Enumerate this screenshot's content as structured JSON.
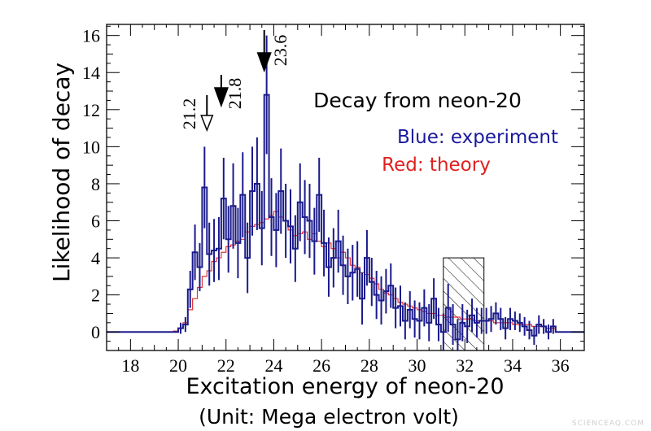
{
  "chart_data": {
    "type": "line",
    "xlabel": "Excitation energy of neon-20",
    "xlabel_unit": "(Unit: Mega electron volt)",
    "ylabel": "Likelihood of decay",
    "xlim": [
      17,
      37
    ],
    "ylim": [
      -1,
      16.6
    ],
    "x_ticks": [
      18,
      20,
      22,
      24,
      26,
      28,
      30,
      32,
      34,
      36
    ],
    "y_ticks": [
      0,
      2,
      4,
      6,
      8,
      10,
      12,
      14,
      16
    ],
    "annotations": {
      "title": "Decay from neon-20",
      "blue_legend": "Blue: experiment",
      "red_legend": "Red: theory"
    },
    "markers": [
      {
        "label": "21.2",
        "x": 21.2,
        "style": "open"
      },
      {
        "label": "21.8",
        "x": 21.8,
        "style": "filled"
      },
      {
        "label": "23.6",
        "x": 23.6,
        "style": "filled"
      }
    ],
    "hatched_region": {
      "x": [
        31.1,
        32.8
      ],
      "y": [
        -1,
        4
      ]
    },
    "series": [
      {
        "color": "#1a1a8c",
        "bin_width": 0.2,
        "x": [
          20.0,
          20.2,
          20.4,
          20.6,
          20.8,
          21.0,
          21.2,
          21.4,
          21.6,
          21.8,
          22.0,
          22.2,
          22.4,
          22.6,
          22.8,
          23.0,
          23.2,
          23.4,
          23.6,
          23.8,
          24.0,
          24.2,
          24.4,
          24.6,
          24.8,
          25.0,
          25.2,
          25.4,
          25.6,
          25.8,
          26.0,
          26.2,
          26.4,
          26.6,
          26.8,
          27.0,
          27.2,
          27.4,
          27.6,
          27.8,
          28.0,
          28.2,
          28.4,
          28.6,
          28.8,
          29.0,
          29.2,
          29.4,
          29.6,
          29.8,
          30.0,
          30.2,
          30.4,
          30.6,
          30.8,
          31.0,
          31.2,
          31.4,
          31.6,
          31.8,
          32.0,
          32.2,
          32.4,
          32.6,
          32.8,
          33.0,
          33.2,
          33.4,
          33.6,
          33.8,
          34.0,
          34.2,
          34.4,
          34.6,
          34.8,
          35.0,
          35.2,
          35.4,
          35.6
        ],
        "y": [
          0.2,
          0.4,
          2.3,
          4.3,
          3.5,
          7.8,
          4.2,
          4.4,
          4.5,
          7.2,
          5.0,
          6.8,
          4.8,
          7.4,
          4.0,
          7.6,
          8.0,
          5.6,
          12.8,
          6.2,
          5.5,
          7.6,
          6.0,
          5.7,
          4.5,
          7.0,
          6.2,
          6.0,
          4.9,
          7.4,
          4.8,
          3.5,
          4.0,
          4.9,
          3.6,
          3.0,
          3.2,
          3.4,
          1.8,
          4.0,
          2.7,
          2.0,
          1.7,
          2.2,
          2.5,
          1.3,
          1.4,
          0.6,
          1.2,
          0.7,
          0.6,
          1.3,
          0.5,
          1.8,
          0.4,
          0.0,
          1.3,
          0.4,
          -0.4,
          0.5,
          0.3,
          0.9,
          0.5,
          0.6,
          0.6,
          0.7,
          1.0,
          0.7,
          0.2,
          0.7,
          0.6,
          0.5,
          0.3,
          0.1,
          -0.2,
          0.4,
          0.3,
          0.0,
          0.3
        ],
        "err": [
          0.3,
          0.4,
          1.0,
          1.5,
          1.3,
          2.2,
          1.7,
          1.7,
          1.7,
          2.2,
          1.8,
          2.3,
          1.9,
          2.3,
          1.9,
          2.4,
          2.5,
          2.0,
          3.2,
          2.1,
          2.0,
          2.3,
          2.0,
          2.0,
          1.8,
          2.1,
          2.0,
          2.0,
          1.8,
          2.0,
          1.8,
          1.6,
          1.6,
          1.7,
          1.6,
          1.5,
          1.5,
          1.5,
          1.4,
          1.5,
          1.3,
          1.3,
          1.3,
          1.2,
          1.2,
          1.1,
          1.1,
          1.0,
          1.0,
          1.0,
          1.0,
          1.0,
          1.0,
          1.1,
          0.9,
          1.0,
          1.3,
          1.1,
          1.1,
          1.0,
          0.9,
          0.9,
          0.8,
          0.7,
          0.7,
          0.7,
          0.6,
          0.6,
          0.6,
          0.6,
          0.5,
          0.5,
          0.5,
          0.5,
          0.5,
          0.5,
          0.4,
          0.4,
          0.4
        ]
      },
      {
        "color": "#e53030",
        "bin_width": 0.2,
        "x": [
          19.8,
          20.0,
          20.2,
          20.4,
          20.6,
          20.8,
          21.0,
          21.2,
          21.4,
          21.6,
          21.8,
          22.0,
          22.2,
          22.4,
          22.6,
          22.8,
          23.0,
          23.2,
          23.4,
          23.6,
          23.8,
          24.0,
          24.2,
          24.4,
          24.6,
          24.8,
          25.0,
          25.2,
          25.4,
          25.6,
          25.8,
          26.0,
          26.2,
          26.4,
          26.6,
          26.8,
          27.0,
          27.2,
          27.4,
          27.6,
          27.8,
          28.0,
          28.2,
          28.4,
          28.6,
          28.8,
          29.0,
          29.2,
          29.4,
          29.6,
          29.8,
          30.0,
          30.2,
          30.4,
          30.6,
          30.8,
          31.0,
          31.2,
          31.4,
          31.6,
          31.8,
          32.0,
          32.2,
          32.4,
          32.6,
          32.8,
          33.0,
          33.2,
          33.4,
          33.6,
          33.8,
          34.0,
          34.2,
          34.4,
          34.6,
          34.8,
          35.0,
          35.2,
          35.4,
          35.6
        ],
        "y": [
          0.05,
          0.2,
          0.5,
          1.2,
          1.8,
          2.4,
          3.0,
          3.3,
          3.8,
          4.0,
          4.3,
          4.6,
          4.7,
          4.9,
          5.0,
          5.4,
          5.7,
          5.8,
          5.9,
          6.1,
          6.3,
          6.5,
          6.2,
          6.0,
          5.5,
          5.2,
          5.3,
          5.4,
          5.0,
          5.3,
          4.9,
          4.6,
          4.8,
          4.5,
          4.0,
          4.3,
          4.0,
          3.6,
          3.5,
          3.2,
          3.1,
          2.9,
          2.6,
          2.3,
          2.1,
          2.0,
          1.8,
          1.6,
          1.5,
          1.4,
          1.3,
          1.2,
          1.1,
          1.0,
          1.0,
          0.9,
          0.9,
          0.8,
          0.8,
          0.8,
          0.7,
          0.7,
          0.7,
          0.6,
          0.6,
          0.6,
          0.6,
          0.5,
          0.5,
          0.5,
          0.5,
          0.4,
          0.4,
          0.4,
          0.4,
          0.3,
          0.3,
          0.3,
          0.2,
          0.2
        ]
      }
    ]
  },
  "watermark": "SCIENCEAQ.COM"
}
